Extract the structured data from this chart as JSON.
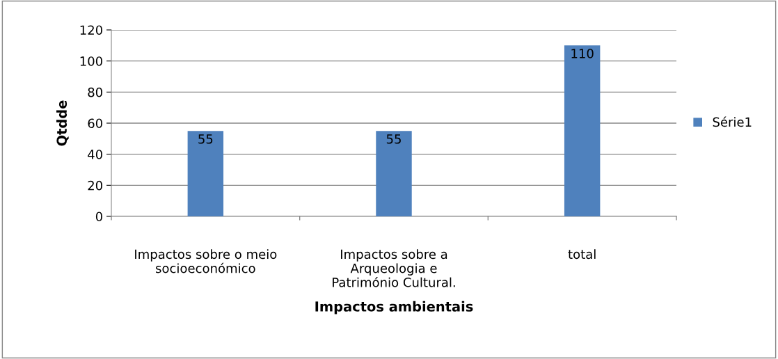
{
  "chart_data": {
    "type": "bar",
    "xlabel": "Impactos ambientais",
    "ylabel": "Qtdde",
    "categories": [
      "Impactos sobre o meio\nsocioeconómico",
      "Impactos sobre a\nArqueologia e\nPatrimónio Cultural.",
      "total"
    ],
    "series": [
      {
        "name": "Série1",
        "color": "#4f81bd",
        "values": [
          55,
          55,
          110
        ]
      }
    ],
    "ylim": [
      0,
      120
    ],
    "yticks": [
      0,
      20,
      40,
      60,
      80,
      100,
      120
    ],
    "grid": "y",
    "legend": "right",
    "data_labels": true
  }
}
